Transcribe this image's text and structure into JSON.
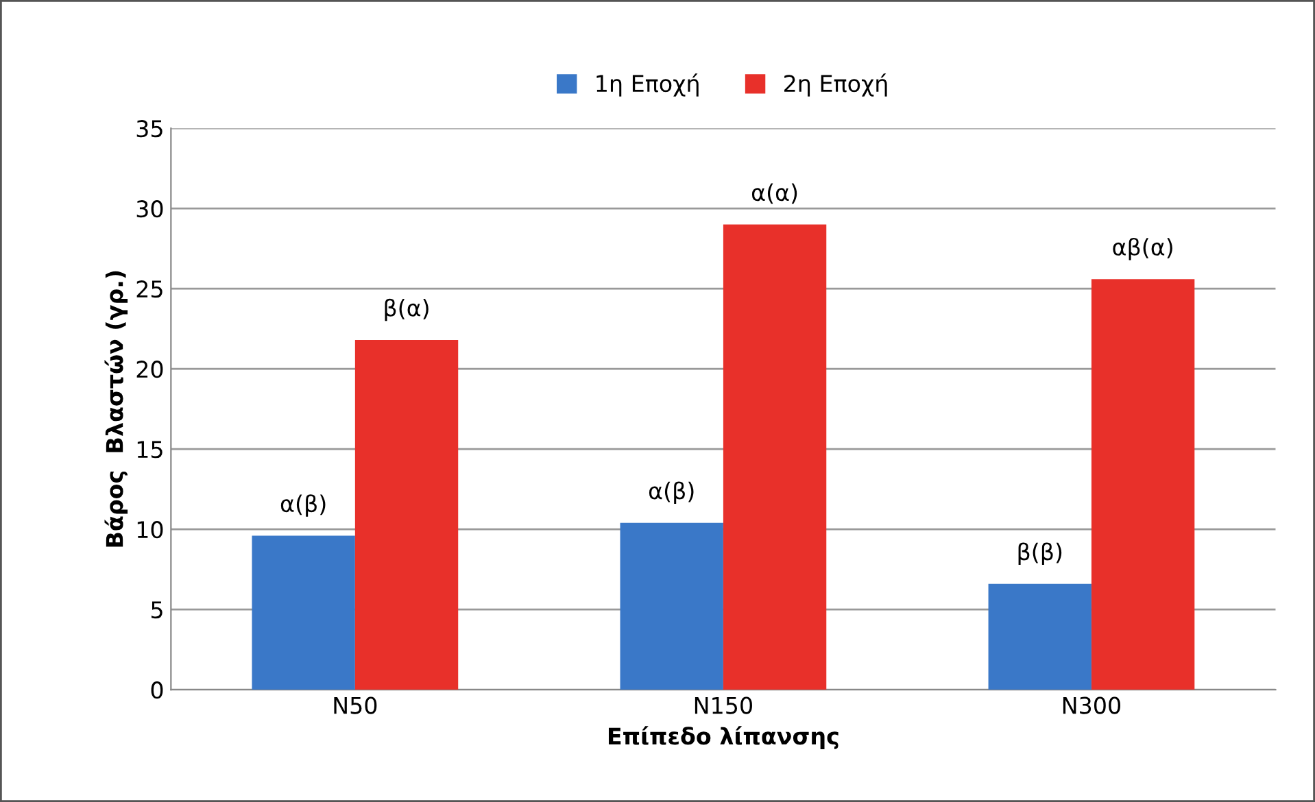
{
  "chart_data": {
    "type": "bar",
    "xlabel": "Επίπεδο λίπανσης",
    "ylabel": "Βάρος  Βλαστών (γρ.)",
    "categories": [
      "N50",
      "N150",
      "N300"
    ],
    "series": [
      {
        "name": "1η Εποχή",
        "color": "#3a78c8",
        "values": [
          9.6,
          10.4,
          6.6
        ],
        "value_labels": [
          "α(β)",
          "α(β)",
          "β(β)"
        ]
      },
      {
        "name": "2η Εποχή",
        "color": "#e8302a",
        "values": [
          21.8,
          29.0,
          25.6
        ],
        "value_labels": [
          "β(α)",
          "α(α)",
          "αβ(α)"
        ]
      }
    ],
    "ylim": [
      0,
      35
    ],
    "yticks": [
      0,
      5,
      10,
      15,
      20,
      25,
      30,
      35
    ],
    "grid": "y",
    "legend": "top"
  }
}
